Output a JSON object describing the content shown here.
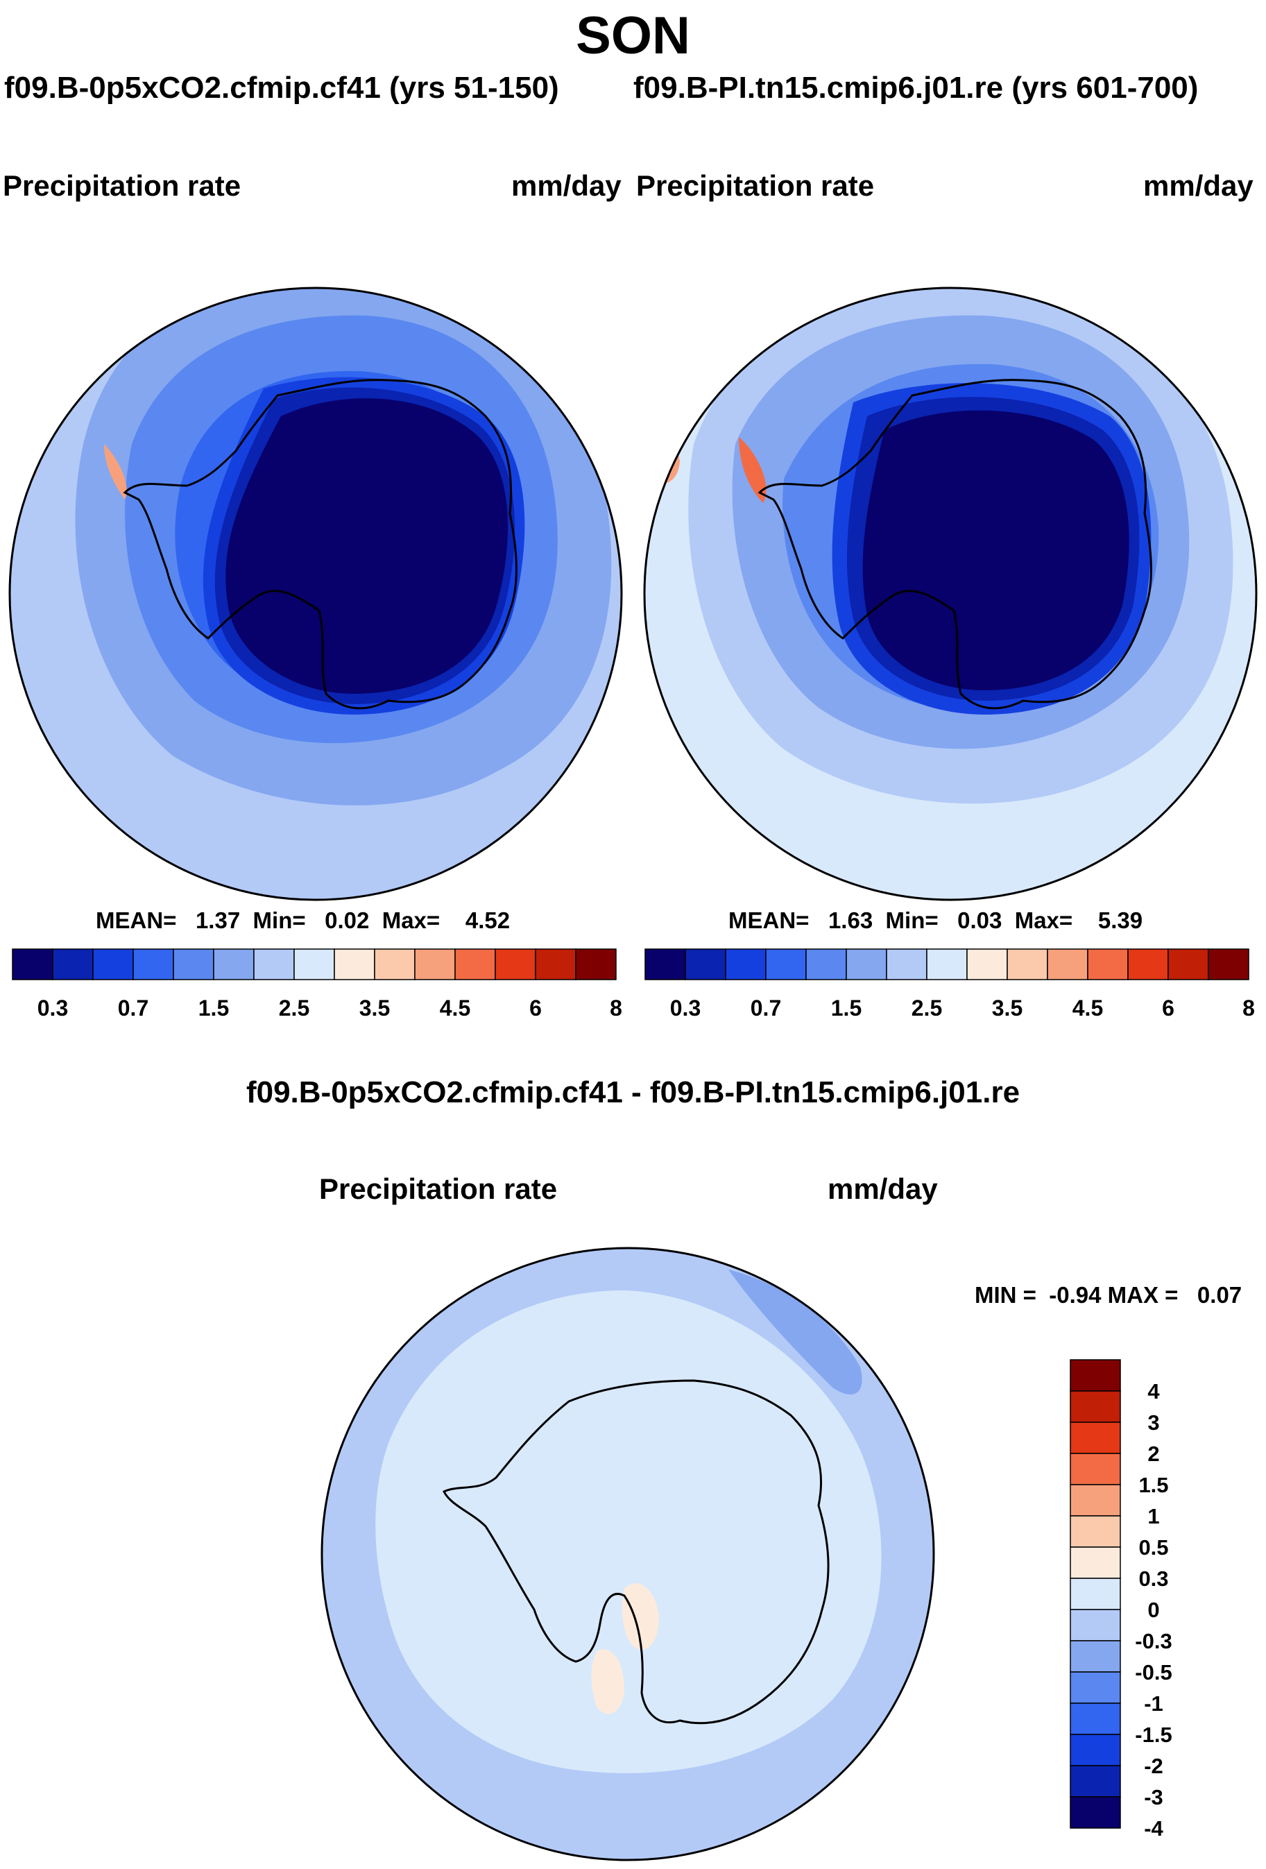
{
  "title": "SON",
  "panels": [
    {
      "run_title": "f09.B-0p5xCO2.cfmip.cf41 (yrs 51-150)",
      "variable": "Precipitation rate",
      "units": "mm/day",
      "stats": {
        "mean_label": "MEAN=",
        "mean": "1.37",
        "min_label": "Min=",
        "min": "0.02",
        "max_label": "Max=",
        "max": "4.52"
      }
    },
    {
      "run_title": "f09.B-PI.tn15.cmip6.j01.re (yrs 601-700)",
      "variable": "Precipitation rate",
      "units": "mm/day",
      "stats": {
        "mean_label": "MEAN=",
        "mean": "1.63",
        "min_label": "Min=",
        "min": "0.03",
        "max_label": "Max=",
        "max": "5.39"
      }
    }
  ],
  "diff_panel": {
    "title": "f09.B-0p5xCO2.cfmip.cf41 - f09.B-PI.tn15.cmip6.j01.re",
    "variable": "Precipitation rate",
    "units": "mm/day",
    "stats_text": "MIN =  -0.94 MAX =   0.07"
  },
  "colorbar_abs": {
    "colors": [
      "#08006b",
      "#0a23b0",
      "#1540e0",
      "#3266f0",
      "#5a88f0",
      "#85a7f0",
      "#b3caf7",
      "#d8e9fb",
      "#fcebdc",
      "#fbc9ac",
      "#f7a17c",
      "#f26b45",
      "#e53816",
      "#c11f06",
      "#7f0000"
    ],
    "tick_labels": [
      "0.3",
      "0.7",
      "1.5",
      "2.5",
      "3.5",
      "4.5",
      "6",
      "8"
    ]
  },
  "colorbar_diff": {
    "colors": [
      "#7f0000",
      "#c11f06",
      "#e53816",
      "#f26b45",
      "#f7a17c",
      "#fbc9ac",
      "#fcebdc",
      "#d8e9fb",
      "#b3caf7",
      "#85a7f0",
      "#5a88f0",
      "#3266f0",
      "#1540e0",
      "#0a23b0",
      "#08006b"
    ],
    "tick_labels": [
      "4",
      "3",
      "2",
      "1.5",
      "1",
      "0.5",
      "0.3",
      "0",
      "-0.3",
      "-0.5",
      "-1",
      "-1.5",
      "-2",
      "-3",
      "-4"
    ]
  }
}
